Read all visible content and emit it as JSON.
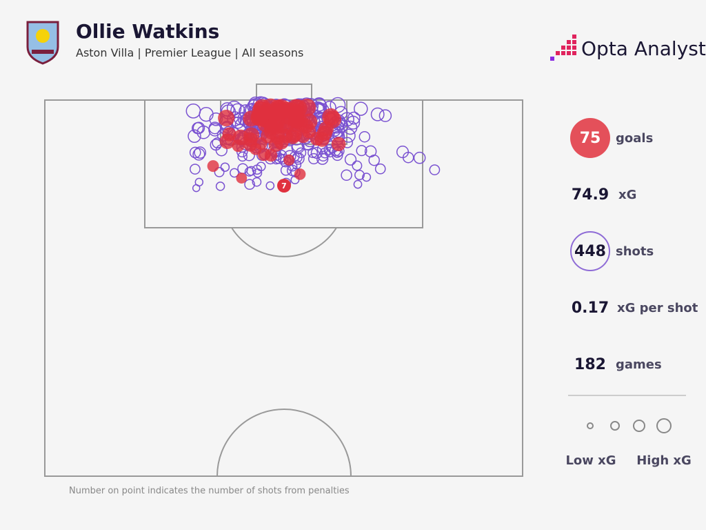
{
  "header": {
    "title": "Ollie Watkins",
    "subtitle": "Aston Villa | Premier League | All seasons",
    "brand": "Opta Analyst"
  },
  "stats": [
    {
      "value": 75,
      "label": "goals"
    },
    {
      "value": 74.9,
      "label": "xG"
    },
    {
      "value": 448,
      "label": "shots"
    },
    {
      "value": 0.17,
      "label": "xG per shot"
    },
    {
      "value": 182,
      "label": "games"
    }
  ],
  "penalty_marker": 7,
  "legend": {
    "low": "Low xG",
    "high": "High xG"
  },
  "footnote": "Number on point indicates the number of shots from penalties"
}
